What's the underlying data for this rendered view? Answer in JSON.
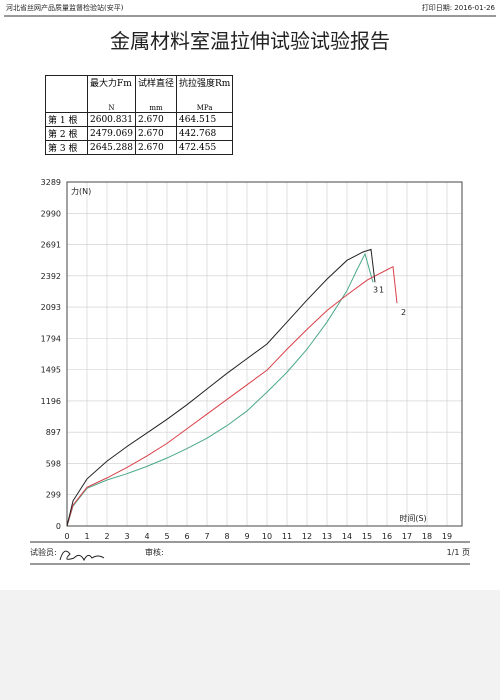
{
  "header": {
    "org": "河北省丝网产品质量监督检验站(安平)",
    "print_date": "打印日期: 2016-01-26"
  },
  "title": "金属材料室温拉伸试验试验报告",
  "table": {
    "columns": [
      {
        "title": "最大力Fm",
        "unit": "N"
      },
      {
        "title": "试样直径",
        "unit": "mm"
      },
      {
        "title": "抗拉强度Rm",
        "unit": "MPa"
      }
    ],
    "rows": [
      [
        "第 1 根",
        "2600.831",
        "2.670",
        "464.515"
      ],
      [
        "第 2 根",
        "2479.069",
        "2.670",
        "442.768"
      ],
      [
        "第 3 根",
        "2645.288",
        "2.670",
        "472.455"
      ]
    ]
  },
  "chart_data": {
    "type": "line",
    "x_label": "时间(S)",
    "y_label": "力(N)",
    "xlim": [
      0,
      19.75
    ],
    "ylim": [
      0,
      3289
    ],
    "xticks": [
      0,
      1,
      2,
      3,
      4,
      5,
      6,
      7,
      8,
      9,
      10,
      11,
      12,
      13,
      14,
      15,
      16,
      17,
      18,
      19
    ],
    "yticks": [
      0,
      299,
      598,
      897,
      1196,
      1495,
      1794,
      2093,
      2392,
      2691,
      2990,
      3289
    ],
    "grid": true,
    "series": [
      {
        "name": "1",
        "color": "#4aa88a",
        "x": [
          0,
          0.3,
          1,
          2,
          3,
          4,
          5,
          6,
          7,
          8,
          9,
          10,
          11,
          12,
          13,
          14,
          14.5,
          14.9,
          15.3
        ],
        "values": [
          0,
          190,
          360,
          440,
          500,
          570,
          650,
          740,
          840,
          960,
          1100,
          1280,
          1470,
          1690,
          1950,
          2250,
          2450,
          2601,
          2330
        ]
      },
      {
        "name": "2",
        "color": "#d9404a",
        "x": [
          0,
          0.3,
          1,
          2,
          3,
          4,
          5,
          6,
          7,
          8,
          9,
          10,
          11,
          12,
          13,
          14,
          15,
          16,
          16.3,
          16.5
        ],
        "values": [
          0,
          200,
          370,
          460,
          560,
          670,
          790,
          930,
          1070,
          1210,
          1350,
          1490,
          1690,
          1880,
          2060,
          2210,
          2350,
          2450,
          2479,
          2130
        ]
      },
      {
        "name": "3",
        "color": "#222222",
        "x": [
          0,
          0.3,
          1,
          2,
          3,
          4,
          5,
          6,
          7,
          8,
          9,
          10,
          11,
          12,
          13,
          14,
          14.8,
          15.2,
          15.4
        ],
        "values": [
          0,
          240,
          450,
          620,
          760,
          890,
          1020,
          1160,
          1310,
          1460,
          1600,
          1740,
          1950,
          2160,
          2360,
          2540,
          2620,
          2645,
          2330
        ]
      }
    ]
  },
  "footer": {
    "tester": "试验员:",
    "reviewer": "审核:",
    "page": "1/1 页"
  }
}
